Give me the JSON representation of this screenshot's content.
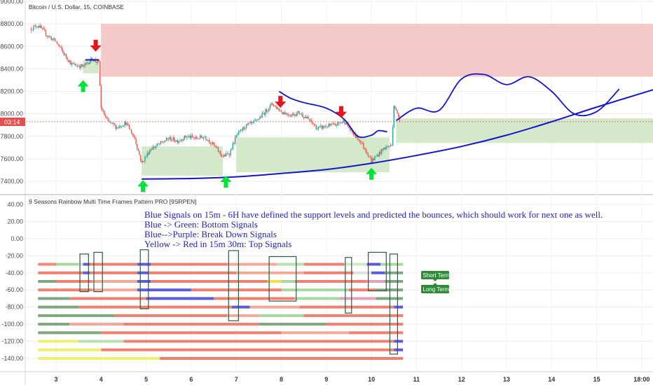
{
  "header": {
    "price_title": "Bitcoin / U.S. Dollar, 15, COINBASE",
    "indicator_title": "9 Seasons Rainbow Multi Time Frames Pattern PRO [9SRPEN]"
  },
  "price_tag": "03:14",
  "notes": [
    "Blue Signals on 15m - 6H have defined the support levels and predicted the bounces, which should work for next one as well.",
    "Blue -> Green: Bottom Signals",
    "Blue-->Purple: Break Down Signals",
    "Yellow -> Red in 15m 30m: Top Signals"
  ],
  "badges": [
    "Short Term",
    "Long Term"
  ],
  "colors": {
    "up_candle": "#26a69a",
    "down_candle": "#ef5350",
    "resistance_zone": "#f2c0c0",
    "support_zone": "#cfe5c4",
    "trend_line": "#1515c8",
    "signal_up": "#00e23a",
    "signal_down": "#e8141c",
    "badge": "#2e8b3a"
  },
  "chart_data": [
    {
      "type": "candlestick",
      "title": "Bitcoin / U.S. Dollar, 15, COINBASE",
      "x_ticks": [
        "3",
        "4",
        "5",
        "6",
        "7",
        "8",
        "9",
        "10",
        "11",
        "12",
        "13",
        "14",
        "15",
        "18:00"
      ],
      "y_ticks": [
        "9000.00",
        "8800.00",
        "8600.00",
        "8400.00",
        "8200.00",
        "8000.00",
        "7800.00",
        "7600.00",
        "7400.00"
      ],
      "ylim": [
        7250,
        9000
      ],
      "last_price": 7930,
      "close_path": [
        {
          "day": 2.45,
          "price": 8760
        },
        {
          "day": 2.6,
          "price": 8790
        },
        {
          "day": 2.8,
          "price": 8700
        },
        {
          "day": 3.0,
          "price": 8640
        },
        {
          "day": 3.2,
          "price": 8520
        },
        {
          "day": 3.35,
          "price": 8440
        },
        {
          "day": 3.6,
          "price": 8420
        },
        {
          "day": 3.8,
          "price": 8490
        },
        {
          "day": 3.95,
          "price": 8450
        },
        {
          "day": 4.0,
          "price": 8050
        },
        {
          "day": 4.15,
          "price": 7930
        },
        {
          "day": 4.35,
          "price": 7880
        },
        {
          "day": 4.55,
          "price": 7920
        },
        {
          "day": 4.75,
          "price": 7780
        },
        {
          "day": 4.9,
          "price": 7560
        },
        {
          "day": 5.1,
          "price": 7690
        },
        {
          "day": 5.3,
          "price": 7730
        },
        {
          "day": 5.5,
          "price": 7780
        },
        {
          "day": 5.7,
          "price": 7760
        },
        {
          "day": 5.9,
          "price": 7800
        },
        {
          "day": 6.1,
          "price": 7780
        },
        {
          "day": 6.3,
          "price": 7800
        },
        {
          "day": 6.5,
          "price": 7720
        },
        {
          "day": 6.7,
          "price": 7620
        },
        {
          "day": 6.85,
          "price": 7650
        },
        {
          "day": 7.0,
          "price": 7800
        },
        {
          "day": 7.2,
          "price": 7890
        },
        {
          "day": 7.4,
          "price": 7920
        },
        {
          "day": 7.6,
          "price": 8000
        },
        {
          "day": 7.8,
          "price": 8090
        },
        {
          "day": 8.0,
          "price": 8020
        },
        {
          "day": 8.2,
          "price": 7990
        },
        {
          "day": 8.4,
          "price": 8010
        },
        {
          "day": 8.6,
          "price": 7950
        },
        {
          "day": 8.8,
          "price": 7870
        },
        {
          "day": 9.0,
          "price": 7890
        },
        {
          "day": 9.2,
          "price": 7900
        },
        {
          "day": 9.4,
          "price": 7940
        },
        {
          "day": 9.55,
          "price": 7840
        },
        {
          "day": 9.75,
          "price": 7760
        },
        {
          "day": 9.9,
          "price": 7660
        },
        {
          "day": 10.0,
          "price": 7580
        },
        {
          "day": 10.15,
          "price": 7640
        },
        {
          "day": 10.3,
          "price": 7700
        },
        {
          "day": 10.45,
          "price": 7720
        },
        {
          "day": 10.5,
          "price": 8080
        },
        {
          "day": 10.58,
          "price": 7990
        },
        {
          "day": 10.65,
          "price": 7940
        }
      ],
      "resistance_zone": {
        "day_from": 4.0,
        "day_to": 16.5,
        "price_low": 8330,
        "price_high": 8800
      },
      "support_zones": [
        {
          "day_from": 3.6,
          "day_to": 3.95,
          "price_low": 8360,
          "price_high": 8480
        },
        {
          "day_from": 4.9,
          "day_to": 6.7,
          "price_low": 7450,
          "price_high": 7710
        },
        {
          "day_from": 7.0,
          "day_to": 10.4,
          "price_low": 7480,
          "price_high": 7790
        },
        {
          "day_from": 10.55,
          "day_to": 16.5,
          "price_low": 7740,
          "price_high": 7960
        }
      ],
      "support_curve": [
        {
          "day": 4.9,
          "price": 7420
        },
        {
          "day": 6.0,
          "price": 7425
        },
        {
          "day": 7.0,
          "price": 7440
        },
        {
          "day": 8.0,
          "price": 7470
        },
        {
          "day": 9.0,
          "price": 7505
        },
        {
          "day": 10.0,
          "price": 7560
        },
        {
          "day": 11.0,
          "price": 7630
        },
        {
          "day": 12.0,
          "price": 7710
        },
        {
          "day": 13.0,
          "price": 7810
        },
        {
          "day": 14.0,
          "price": 7930
        },
        {
          "day": 15.0,
          "price": 8060
        },
        {
          "day": 16.3,
          "price": 8220
        }
      ],
      "projection_path": [
        {
          "day": 7.95,
          "price": 8200
        },
        {
          "day": 8.2,
          "price": 8140
        },
        {
          "day": 8.5,
          "price": 8100
        },
        {
          "day": 9.0,
          "price": 8050
        },
        {
          "day": 9.4,
          "price": 7950
        },
        {
          "day": 9.7,
          "price": 7800
        },
        {
          "day": 10.0,
          "price": 7810
        },
        {
          "day": 10.15,
          "price": 7850
        },
        {
          "day": 10.35,
          "price": 7840
        }
      ],
      "forecast_path": [
        {
          "day": 10.55,
          "price": 7940
        },
        {
          "day": 11.0,
          "price": 8050
        },
        {
          "day": 11.5,
          "price": 8030
        },
        {
          "day": 12.0,
          "price": 8310
        },
        {
          "day": 12.5,
          "price": 8350
        },
        {
          "day": 13.0,
          "price": 8260
        },
        {
          "day": 13.5,
          "price": 8330
        },
        {
          "day": 14.0,
          "price": 8200
        },
        {
          "day": 14.5,
          "price": 8000
        },
        {
          "day": 15.0,
          "price": 8020
        },
        {
          "day": 15.5,
          "price": 8220
        }
      ],
      "buy_signals": [
        {
          "day": 3.6,
          "price": 8250
        },
        {
          "day": 4.93,
          "price": 7360
        },
        {
          "day": 6.77,
          "price": 7400
        },
        {
          "day": 10.0,
          "price": 7470
        }
      ],
      "sell_signals": [
        {
          "day": 3.88,
          "price": 8590
        },
        {
          "day": 7.98,
          "price": 8090
        },
        {
          "day": 9.33,
          "price": 8000
        }
      ]
    },
    {
      "type": "heatmap",
      "title": "9 Seasons Rainbow Multi Time Frames Pattern PRO [9SRPEN]",
      "y_ticks": [
        "40.00",
        "20.00",
        "0.00",
        "-20.00",
        "-40.00",
        "-60.00",
        "-80.00",
        "-100.00",
        "-120.00",
        "-140.00"
      ],
      "ylim": [
        -150,
        45
      ],
      "rows": [
        {
          "level": -30,
          "segments": [
            {
              "to": 3.0,
              "color": "#f18a7a"
            },
            {
              "to": 3.5,
              "color": "#a6d8a0"
            },
            {
              "to": 3.6,
              "color": "#e0e0e0"
            },
            {
              "to": 3.75,
              "color": "#5c5cd8"
            },
            {
              "to": 4.8,
              "color": "#f08070"
            },
            {
              "to": 5.1,
              "color": "#5c5cd8"
            },
            {
              "to": 6.8,
              "color": "#f08070"
            },
            {
              "to": 7.9,
              "color": "#f4a898"
            },
            {
              "to": 8.5,
              "color": "#b8e0b0"
            },
            {
              "to": 9.4,
              "color": "#f08070"
            },
            {
              "to": 9.9,
              "color": "#d0e8c8"
            },
            {
              "to": 10.2,
              "color": "#5c5cd8"
            },
            {
              "to": 10.7,
              "color": "#a6d8a0"
            }
          ]
        },
        {
          "level": -40,
          "segments": [
            {
              "to": 3.6,
              "color": "#f08070"
            },
            {
              "to": 3.75,
              "color": "#5c5cd8"
            },
            {
              "to": 4.8,
              "color": "#f08070"
            },
            {
              "to": 5.05,
              "color": "#5c5cd8"
            },
            {
              "to": 7.0,
              "color": "#f08070"
            },
            {
              "to": 8.5,
              "color": "#f4a898"
            },
            {
              "to": 9.6,
              "color": "#f08070"
            },
            {
              "to": 10.0,
              "color": "#e0e0e0"
            },
            {
              "to": 10.3,
              "color": "#5c5cd8"
            },
            {
              "to": 10.7,
              "color": "#7fa77f"
            }
          ]
        },
        {
          "level": -50,
          "segments": [
            {
              "to": 3.0,
              "color": "#7fa77f"
            },
            {
              "to": 3.8,
              "color": "#f08070"
            },
            {
              "to": 4.8,
              "color": "#f4a898"
            },
            {
              "to": 5.1,
              "color": "#5c5cd8"
            },
            {
              "to": 7.7,
              "color": "#f08070"
            },
            {
              "to": 8.0,
              "color": "#f0e040"
            },
            {
              "to": 8.3,
              "color": "#a6d8a0"
            },
            {
              "to": 9.9,
              "color": "#f08070"
            },
            {
              "to": 10.3,
              "color": "#e4a0c0"
            },
            {
              "to": 10.7,
              "color": "#7fa77f"
            }
          ]
        },
        {
          "level": -60,
          "segments": [
            {
              "to": 3.8,
              "color": "#f08070"
            },
            {
              "to": 4.8,
              "color": "#f4a898"
            },
            {
              "to": 6.0,
              "color": "#5c5cd8"
            },
            {
              "to": 8.0,
              "color": "#f08070"
            },
            {
              "to": 9.5,
              "color": "#a6d8a0"
            },
            {
              "to": 10.1,
              "color": "#f08070"
            },
            {
              "to": 10.7,
              "color": "#7fa77f"
            }
          ]
        },
        {
          "level": -70,
          "segments": [
            {
              "to": 3.3,
              "color": "#7fa77f"
            },
            {
              "to": 5.0,
              "color": "#f08070"
            },
            {
              "to": 6.5,
              "color": "#5c5cd8"
            },
            {
              "to": 8.3,
              "color": "#f08070"
            },
            {
              "to": 9.3,
              "color": "#a6d8a0"
            },
            {
              "to": 10.1,
              "color": "#e4a0c0"
            },
            {
              "to": 10.7,
              "color": "#7fa77f"
            }
          ]
        },
        {
          "level": -80,
          "segments": [
            {
              "to": 3.5,
              "color": "#7fa77f"
            },
            {
              "to": 6.9,
              "color": "#f08070"
            },
            {
              "to": 7.3,
              "color": "#5c5cd8"
            },
            {
              "to": 8.4,
              "color": "#f4a898"
            },
            {
              "to": 10.5,
              "color": "#f08070"
            },
            {
              "to": 10.7,
              "color": "#5c5cd8"
            }
          ]
        },
        {
          "level": -90,
          "segments": [
            {
              "to": 4.3,
              "color": "#7fa77f"
            },
            {
              "to": 6.8,
              "color": "#f08070"
            },
            {
              "to": 7.5,
              "color": "#f4a898"
            },
            {
              "to": 8.5,
              "color": "#a6d8a0"
            },
            {
              "to": 10.7,
              "color": "#f08070"
            }
          ]
        },
        {
          "level": -100,
          "segments": [
            {
              "to": 3.3,
              "color": "#7fa77f"
            },
            {
              "to": 4.5,
              "color": "#f4a898"
            },
            {
              "to": 7.5,
              "color": "#f08070"
            },
            {
              "to": 9.0,
              "color": "#7fa77f"
            },
            {
              "to": 10.7,
              "color": "#f08070"
            }
          ]
        },
        {
          "level": -110,
          "segments": [
            {
              "to": 4.0,
              "color": "#7fa77f"
            },
            {
              "to": 8.0,
              "color": "#f08070"
            },
            {
              "to": 9.5,
              "color": "#f4a898"
            },
            {
              "to": 10.7,
              "color": "#f08070"
            }
          ]
        },
        {
          "level": -120,
          "segments": [
            {
              "to": 3.5,
              "color": "#f0f070"
            },
            {
              "to": 4.5,
              "color": "#b8e0b0"
            },
            {
              "to": 10.5,
              "color": "#f08070"
            },
            {
              "to": 10.7,
              "color": "#5c5cd8"
            }
          ]
        },
        {
          "level": -130,
          "segments": [
            {
              "to": 4.0,
              "color": "#f0f070"
            },
            {
              "to": 10.5,
              "color": "#f08070"
            },
            {
              "to": 10.7,
              "color": "#5c5cd8"
            }
          ]
        },
        {
          "level": -140,
          "segments": [
            {
              "to": 5.3,
              "color": "#f0f070"
            },
            {
              "to": 10.7,
              "color": "#f08070"
            }
          ]
        }
      ],
      "highlight_boxes": [
        {
          "day_from": 3.53,
          "day_to": 3.72,
          "level_from": -18,
          "level_to": -62
        },
        {
          "day_from": 3.84,
          "day_to": 4.03,
          "level_from": -16,
          "level_to": -62
        },
        {
          "day_from": 4.87,
          "day_to": 5.05,
          "level_from": -13,
          "level_to": -82
        },
        {
          "day_from": 6.83,
          "day_to": 7.05,
          "level_from": -14,
          "level_to": -96
        },
        {
          "day_from": 7.73,
          "day_to": 8.33,
          "level_from": -21,
          "level_to": -73
        },
        {
          "day_from": 9.42,
          "day_to": 9.56,
          "level_from": -22,
          "level_to": -87
        },
        {
          "day_from": 9.93,
          "day_to": 10.33,
          "level_from": -16,
          "level_to": -61
        },
        {
          "day_from": 10.41,
          "day_to": 10.58,
          "level_from": -18,
          "level_to": -135
        }
      ]
    }
  ]
}
